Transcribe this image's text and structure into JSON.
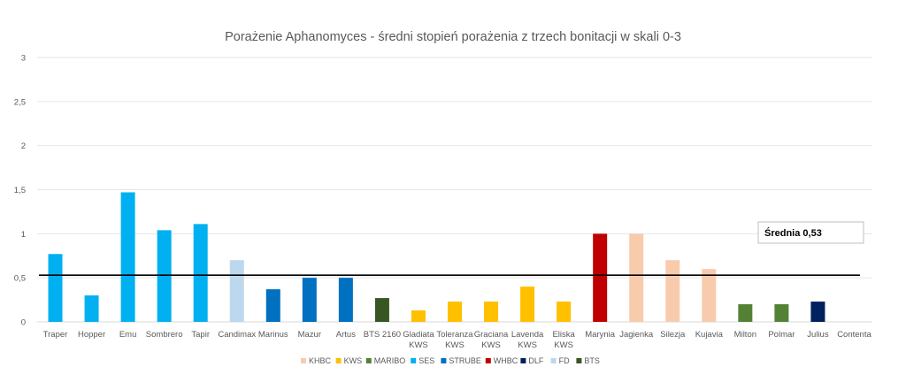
{
  "chart_data": {
    "type": "bar",
    "title": "Porażenie Aphanomyces - średni stopień porażenia z trzech bonitacji w skali 0-3",
    "ylim": [
      0,
      3
    ],
    "yticks": [
      "0",
      "0,5",
      "1",
      "1,5",
      "2",
      "2,5",
      "3"
    ],
    "grid": true,
    "legend_position": "bottom",
    "categories": [
      [
        "Traper"
      ],
      [
        "Hopper"
      ],
      [
        "Emu"
      ],
      [
        "Sombrero"
      ],
      [
        "Tapir"
      ],
      [
        "Candimax"
      ],
      [
        "Marinus"
      ],
      [
        "Mazur"
      ],
      [
        "Artus"
      ],
      [
        "BTS 2160"
      ],
      [
        "Gladiata",
        "KWS"
      ],
      [
        "Toleranza",
        "KWS"
      ],
      [
        "Graciana",
        "KWS"
      ],
      [
        "Lavenda",
        "KWS"
      ],
      [
        "Eliska",
        "KWS"
      ],
      [
        "Marynia"
      ],
      [
        "Jagienka"
      ],
      [
        "Silezja"
      ],
      [
        "Kujavia"
      ],
      [
        "Milton"
      ],
      [
        "Polmar"
      ],
      [
        "Julius"
      ],
      [
        "Contenta"
      ]
    ],
    "values": [
      0.77,
      0.3,
      1.47,
      1.04,
      1.11,
      0.7,
      0.37,
      0.5,
      0.5,
      0.27,
      0.13,
      0.23,
      0.23,
      0.4,
      0.23,
      1.0,
      1.0,
      0.7,
      0.6,
      0.2,
      0.2,
      0.23,
      0
    ],
    "bar_groups": [
      "SES",
      "SES",
      "SES",
      "SES",
      "SES",
      "FD",
      "STRUBE",
      "STRUBE",
      "STRUBE",
      "BTS",
      "KWS",
      "KWS",
      "KWS",
      "KWS",
      "KWS",
      "WHBC",
      "KHBC",
      "KHBC",
      "KHBC",
      "MARIBO",
      "MARIBO",
      "DLF",
      "DLF"
    ],
    "legend": [
      {
        "name": "KHBC",
        "color": "#F8CBAD"
      },
      {
        "name": "KWS",
        "color": "#FFC000"
      },
      {
        "name": "MARIBO",
        "color": "#538135"
      },
      {
        "name": "SES",
        "color": "#00B0F0"
      },
      {
        "name": "STRUBE",
        "color": "#0070C0"
      },
      {
        "name": "WHBC",
        "color": "#C00000"
      },
      {
        "name": "DLF",
        "color": "#002060"
      },
      {
        "name": "FD",
        "color": "#BDD7EE"
      },
      {
        "name": "BTS",
        "color": "#375623"
      }
    ],
    "mean": {
      "value": 0.53,
      "label": "Średnia 0,53"
    }
  }
}
